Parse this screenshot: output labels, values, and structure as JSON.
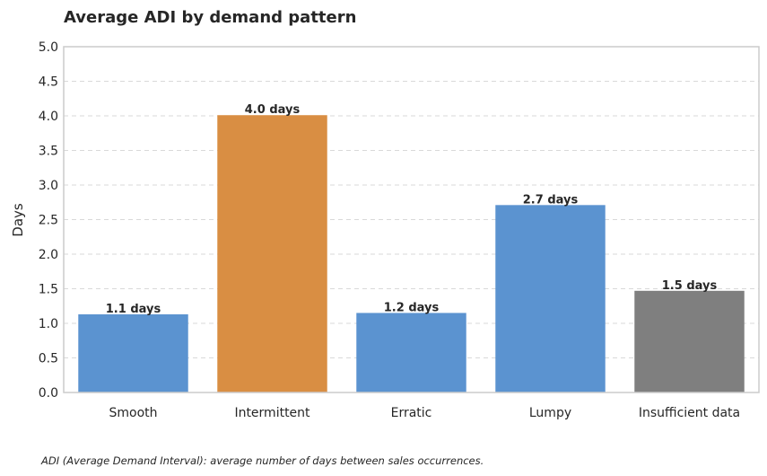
{
  "chart_data": {
    "type": "bar",
    "title": "Average ADI by demand pattern",
    "xlabel": "",
    "ylabel": "Days",
    "categories": [
      "Smooth",
      "Intermittent",
      "Erratic",
      "Lumpy",
      "Insufficient data"
    ],
    "values": [
      1.13,
      4.01,
      1.15,
      2.71,
      1.47
    ],
    "data_labels": [
      "1.1 days",
      "4.0 days",
      "1.2 days",
      "2.7 days",
      "1.5 days"
    ],
    "colors": [
      "#5b93d0",
      "#d98e43",
      "#5b93d0",
      "#5b93d0",
      "#7f7f7f"
    ],
    "ylim": [
      0,
      5
    ],
    "yticks": [
      "0.0",
      "0.5",
      "1.0",
      "1.5",
      "2.0",
      "2.5",
      "3.0",
      "3.5",
      "4.0",
      "4.5",
      "5.0"
    ],
    "grid": "horizontal dashed",
    "legend": "none"
  },
  "footnote": "ADI (Average Demand Interval): average number of days between sales occurrences."
}
